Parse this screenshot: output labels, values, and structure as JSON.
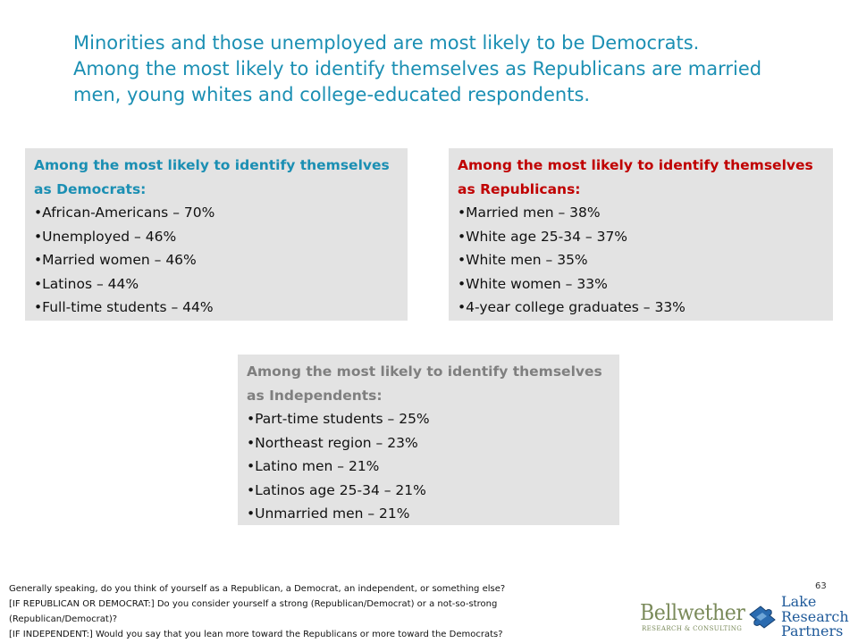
{
  "title": {
    "line1": "Minorities and those unemployed are most likely to be Democrats.",
    "line2": "Among the most likely to identify themselves as Republicans are married",
    "line3": "men, young whites and college-educated respondents."
  },
  "boxes": {
    "democrats": {
      "heading1": "Among the most likely to identify themselves",
      "heading2": "as Democrats:",
      "items": [
        "•African-Americans – 70%",
        "•Unemployed – 46%",
        "•Married women – 46%",
        "•Latinos – 44%",
        "•Full-time students – 44%"
      ]
    },
    "republicans": {
      "heading1": "Among the most likely to identify themselves",
      "heading2": "as Republicans:",
      "items": [
        "•Married men – 38%",
        "•White age 25-34 – 37%",
        "•White men – 35%",
        "•White women – 33%",
        "•4-year college graduates – 33%"
      ]
    },
    "independents": {
      "heading1": "Among the most likely to identify themselves",
      "heading2": "as Independents:",
      "items": [
        "•Part-time students – 25%",
        "•Northeast region  – 23%",
        "•Latino men – 21%",
        "•Latinos age 25-34 – 21%",
        "•Unmarried men – 21%"
      ]
    }
  },
  "footnote": {
    "lines": [
      "Generally speaking, do you think of yourself as a Republican, a Democrat, an independent, or something else?",
      "[IF REPUBLICAN OR DEMOCRAT:]  Do you consider yourself a strong (Republican/Democrat) or a not-so-strong",
      "(Republican/Democrat)?",
      "[IF INDEPENDENT:]   Would you say that you lean more toward the Republicans or more toward the Democrats?"
    ]
  },
  "page_number": "63",
  "logos": {
    "bellwether": {
      "name": "Bellwether",
      "sub": "RESEARCH & CONSULTING"
    },
    "lake": {
      "line1": "Lake",
      "line2": "Research",
      "line3": "Partners"
    }
  },
  "colors": {
    "title": "#1b8fb3",
    "democrats_heading": "#1b8fb3",
    "republicans_heading": "#c00000",
    "independents_heading": "#7f7f7f",
    "box_background": "#e3e3e3"
  }
}
